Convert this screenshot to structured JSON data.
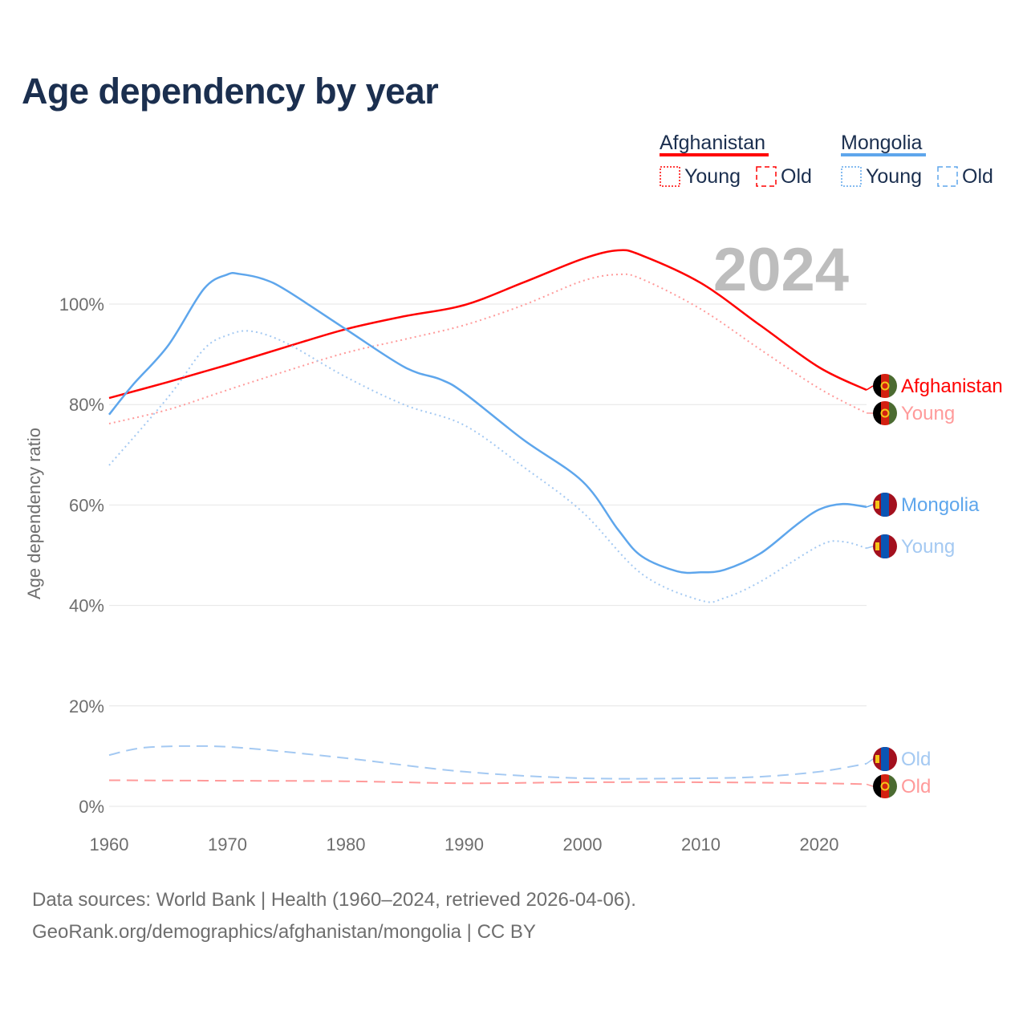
{
  "title": "Age dependency by year",
  "year_label": "2024",
  "legend": [
    {
      "country": "Afghanistan",
      "color": "#ff0000",
      "young": "Young",
      "old": "Old"
    },
    {
      "country": "Mongolia",
      "color": "#5ea6ec",
      "young": "Young",
      "old": "Old"
    }
  ],
  "footer": {
    "line1": "Data sources: World Bank | Health (1960–2024, retrieved 2026-04-06).",
    "line2": "GeoRank.org/demographics/afghanistan/mongolia | CC BY"
  },
  "chart_data": {
    "type": "line",
    "title": "Age dependency by year",
    "xlabel": "",
    "ylabel": "Age dependency ratio",
    "xlim": [
      1960,
      2024
    ],
    "ylim": [
      0,
      110
    ],
    "x_ticks": [
      "1960",
      "1970",
      "1980",
      "1990",
      "2000",
      "2010",
      "2020"
    ],
    "y_ticks": [
      {
        "v": 0,
        "label": "0%"
      },
      {
        "v": 20,
        "label": "20%"
      },
      {
        "v": 40,
        "label": "40%"
      },
      {
        "v": 60,
        "label": "60%"
      },
      {
        "v": 80,
        "label": "80%"
      },
      {
        "v": 100,
        "label": "100%"
      }
    ],
    "grid": true,
    "series": [
      {
        "name": "Afghanistan",
        "label": "Afghanistan",
        "country": "Afghanistan",
        "style": "solid",
        "color": "#ff0000",
        "x": [
          1960,
          1965,
          1970,
          1975,
          1980,
          1985,
          1990,
          1995,
          2000,
          2003,
          2005,
          2010,
          2015,
          2020,
          2024
        ],
        "y": [
          81.3,
          84.5,
          87.9,
          91.5,
          95.0,
          97.6,
          99.8,
          104.3,
          109.0,
          110.7,
          109.7,
          104.2,
          95.8,
          87.4,
          82.9
        ]
      },
      {
        "name": "Afghanistan Young",
        "label": "Young",
        "country": "Afghanistan",
        "style": "dotted",
        "color": "#ff9a9a",
        "x": [
          1960,
          1965,
          1970,
          1975,
          1980,
          1985,
          1990,
          1995,
          2000,
          2003,
          2005,
          2010,
          2015,
          2020,
          2024
        ],
        "y": [
          76.2,
          79.0,
          82.9,
          86.7,
          90.3,
          93.0,
          95.8,
          99.8,
          104.6,
          105.9,
          105.0,
          99.0,
          91.0,
          83.2,
          78.3
        ]
      },
      {
        "name": "Afghanistan Old",
        "label": "Old",
        "country": "Afghanistan",
        "style": "dashed",
        "color": "#ff9a9a",
        "x": [
          1960,
          1970,
          1980,
          1990,
          2000,
          2010,
          2020,
          2024
        ],
        "y": [
          5.2,
          5.1,
          5.0,
          4.6,
          4.8,
          4.8,
          4.6,
          4.4
        ]
      },
      {
        "name": "Mongolia",
        "label": "Mongolia",
        "country": "Mongolia",
        "style": "solid",
        "color": "#5ea6ec",
        "x": [
          1960,
          1962,
          1965,
          1968,
          1970,
          1971,
          1973,
          1975,
          1980,
          1985,
          1988,
          1990,
          1995,
          2000,
          2003,
          2005,
          2008,
          2010,
          2012,
          2015,
          2018,
          2020,
          2022,
          2024
        ],
        "y": [
          78.0,
          83.9,
          91.8,
          103.0,
          105.9,
          106.0,
          105.0,
          102.7,
          95.0,
          87.4,
          85.0,
          82.3,
          73.0,
          64.7,
          55.1,
          49.8,
          46.8,
          46.6,
          47.1,
          50.3,
          55.9,
          59.1,
          60.2,
          59.6
        ]
      },
      {
        "name": "Mongolia Young",
        "label": "Young",
        "country": "Mongolia",
        "style": "dotted",
        "color": "#a4c9f2",
        "x": [
          1960,
          1965,
          1968,
          1970,
          1972,
          1975,
          1980,
          1985,
          1990,
          1995,
          2000,
          2005,
          2010,
          2012,
          2015,
          2020,
          2022,
          2024
        ],
        "y": [
          67.9,
          81.5,
          91.0,
          93.8,
          94.6,
          92.2,
          85.5,
          79.9,
          75.9,
          67.6,
          58.6,
          46.3,
          41.0,
          41.5,
          44.7,
          51.9,
          52.7,
          51.4
        ]
      },
      {
        "name": "Mongolia Old",
        "label": "Old",
        "country": "Mongolia",
        "style": "dashed",
        "color": "#a4c9f2",
        "x": [
          1960,
          1963,
          1968,
          1972,
          1980,
          1990,
          2000,
          2010,
          2015,
          2020,
          2024
        ],
        "y": [
          10.2,
          11.7,
          12.0,
          11.5,
          9.6,
          6.9,
          5.6,
          5.6,
          5.9,
          6.9,
          8.5
        ]
      }
    ]
  }
}
